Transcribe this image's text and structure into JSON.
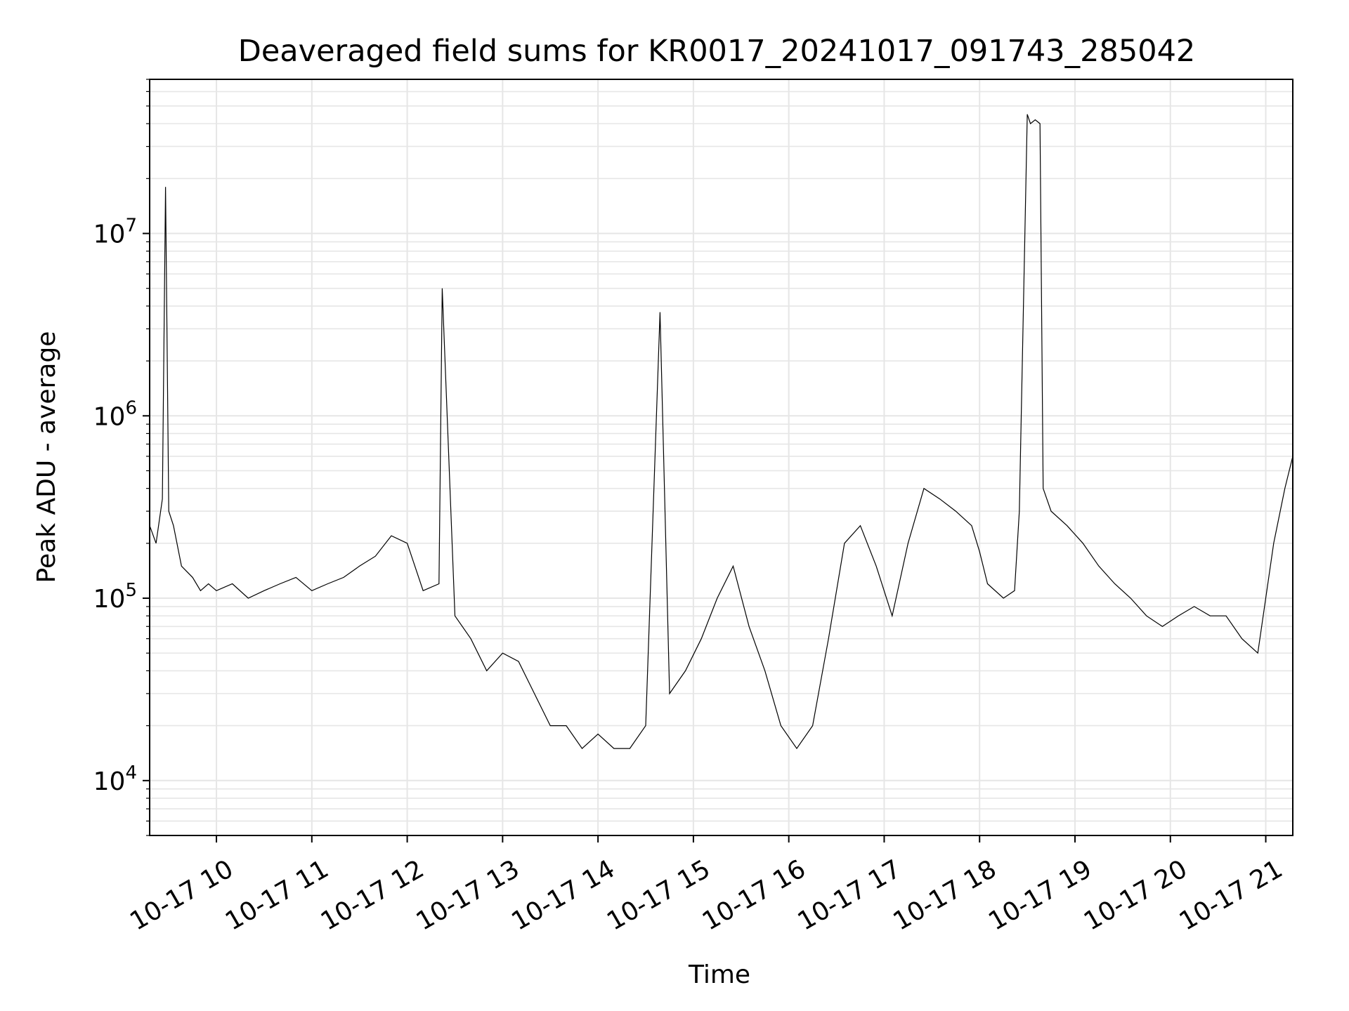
{
  "chart_data": {
    "type": "line",
    "title": "Deaveraged field sums for KR0017_20241017_091743_285042",
    "xlabel": "Time",
    "ylabel": "Peak ADU - average",
    "yscale": "log",
    "xlim": [
      "2024-10-17 09:18",
      "2024-10-17 21:17"
    ],
    "ylim": [
      5000,
      70000000
    ],
    "grid": true,
    "line_color": "#000000",
    "grid_color": "#e6e6e6",
    "x_tick_labels": [
      "10-17 10",
      "10-17 11",
      "10-17 12",
      "10-17 13",
      "10-17 14",
      "10-17 15",
      "10-17 16",
      "10-17 17",
      "10-17 18",
      "10-17 19",
      "10-17 20",
      "10-17 21"
    ],
    "y_tick_labels": [
      {
        "value": 10000,
        "base": "10",
        "exp": "4"
      },
      {
        "value": 100000,
        "base": "10",
        "exp": "5"
      },
      {
        "value": 1000000,
        "base": "10",
        "exp": "6"
      },
      {
        "value": 10000000,
        "base": "10",
        "exp": "7"
      }
    ],
    "series": [
      {
        "x": [
          "2024-10-17 09:18",
          "2024-10-17 09:22",
          "2024-10-17 09:26",
          "2024-10-17 09:28",
          "2024-10-17 09:30",
          "2024-10-17 09:33",
          "2024-10-17 09:38",
          "2024-10-17 09:45",
          "2024-10-17 09:50",
          "2024-10-17 09:55",
          "2024-10-17 10:00",
          "2024-10-17 10:10",
          "2024-10-17 10:20",
          "2024-10-17 10:30",
          "2024-10-17 10:40",
          "2024-10-17 10:50",
          "2024-10-17 11:00",
          "2024-10-17 11:10",
          "2024-10-17 11:20",
          "2024-10-17 11:30",
          "2024-10-17 11:40",
          "2024-10-17 11:50",
          "2024-10-17 12:00",
          "2024-10-17 12:10",
          "2024-10-17 12:20",
          "2024-10-17 12:22",
          "2024-10-17 12:30",
          "2024-10-17 12:40",
          "2024-10-17 12:50",
          "2024-10-17 13:00",
          "2024-10-17 13:10",
          "2024-10-17 13:20",
          "2024-10-17 13:30",
          "2024-10-17 13:40",
          "2024-10-17 13:50",
          "2024-10-17 14:00",
          "2024-10-17 14:10",
          "2024-10-17 14:20",
          "2024-10-17 14:30",
          "2024-10-17 14:39",
          "2024-10-17 14:45",
          "2024-10-17 14:55",
          "2024-10-17 15:05",
          "2024-10-17 15:15",
          "2024-10-17 15:25",
          "2024-10-17 15:35",
          "2024-10-17 15:45",
          "2024-10-17 15:55",
          "2024-10-17 16:05",
          "2024-10-17 16:15",
          "2024-10-17 16:25",
          "2024-10-17 16:35",
          "2024-10-17 16:45",
          "2024-10-17 16:55",
          "2024-10-17 17:05",
          "2024-10-17 17:15",
          "2024-10-17 17:25",
          "2024-10-17 17:35",
          "2024-10-17 17:45",
          "2024-10-17 17:55",
          "2024-10-17 18:00",
          "2024-10-17 18:05",
          "2024-10-17 18:15",
          "2024-10-17 18:22",
          "2024-10-17 18:25",
          "2024-10-17 18:30",
          "2024-10-17 18:32",
          "2024-10-17 18:35",
          "2024-10-17 18:38",
          "2024-10-17 18:40",
          "2024-10-17 18:45",
          "2024-10-17 18:55",
          "2024-10-17 19:05",
          "2024-10-17 19:15",
          "2024-10-17 19:25",
          "2024-10-17 19:35",
          "2024-10-17 19:45",
          "2024-10-17 19:55",
          "2024-10-17 20:05",
          "2024-10-17 20:15",
          "2024-10-17 20:25",
          "2024-10-17 20:35",
          "2024-10-17 20:45",
          "2024-10-17 20:55",
          "2024-10-17 21:05",
          "2024-10-17 21:12",
          "2024-10-17 21:17"
        ],
        "y": [
          250000,
          200000,
          350000,
          18000000,
          300000,
          250000,
          150000,
          130000,
          110000,
          120000,
          110000,
          120000,
          100000,
          110000,
          120000,
          130000,
          110000,
          120000,
          130000,
          150000,
          170000,
          220000,
          200000,
          110000,
          120000,
          5000000,
          80000,
          60000,
          40000,
          50000,
          45000,
          30000,
          20000,
          20000,
          15000,
          18000,
          15000,
          15000,
          20000,
          3700000,
          30000,
          40000,
          60000,
          100000,
          150000,
          70000,
          40000,
          20000,
          15000,
          20000,
          60000,
          200000,
          250000,
          150000,
          80000,
          200000,
          400000,
          350000,
          300000,
          250000,
          180000,
          120000,
          100000,
          110000,
          300000,
          45000000,
          40000000,
          42000000,
          40000000,
          400000,
          300000,
          250000,
          200000,
          150000,
          120000,
          100000,
          80000,
          70000,
          80000,
          90000,
          80000,
          80000,
          60000,
          50000,
          200000,
          400000,
          600000
        ]
      }
    ]
  }
}
